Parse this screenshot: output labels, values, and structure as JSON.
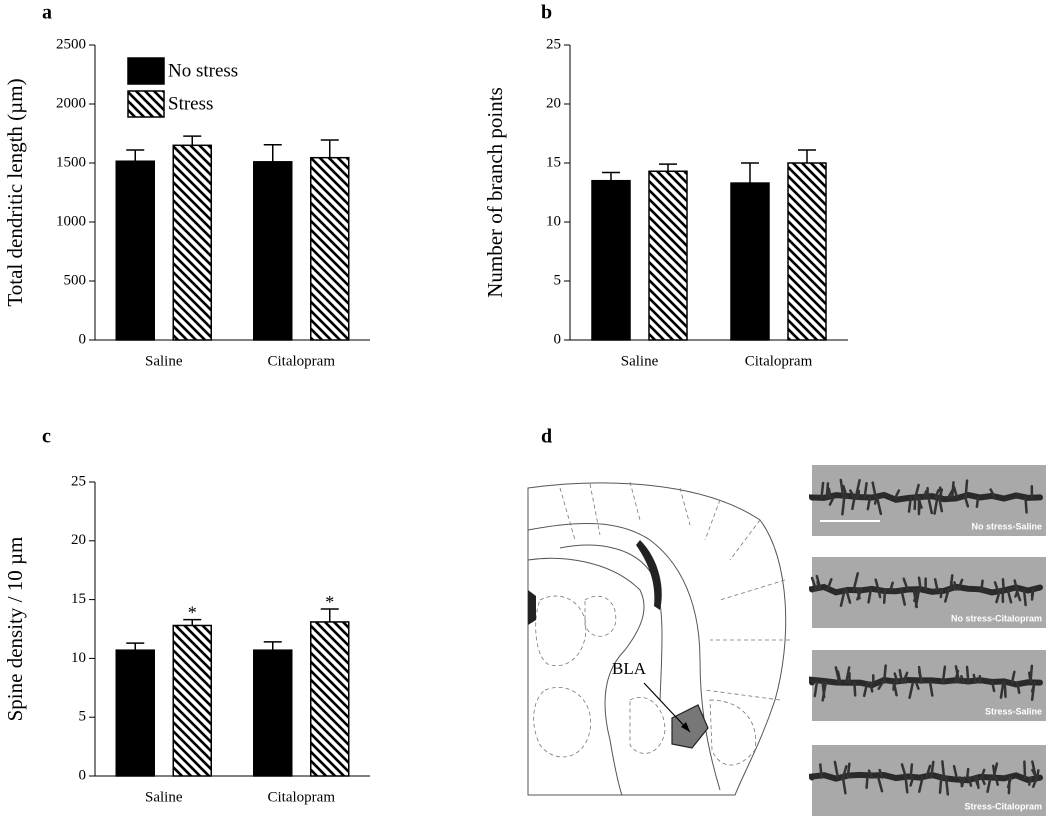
{
  "chart_data": [
    {
      "type": "bar",
      "panel": "a",
      "y_label": "Total dendritic length (µm)",
      "categories": [
        "Saline",
        "Citalopram"
      ],
      "ylim": [
        0,
        2500
      ],
      "yticks": [
        0,
        500,
        1000,
        1500,
        2000,
        2500
      ],
      "legend": "upper left",
      "series": [
        {
          "name": "No stress",
          "color": "#000000",
          "pattern": "solid",
          "values": [
            1515,
            1510
          ],
          "errors": [
            95,
            145
          ]
        },
        {
          "name": "Stress",
          "color": "#000000",
          "pattern": "hatch",
          "values": [
            1650,
            1545
          ],
          "errors": [
            78,
            150
          ]
        }
      ]
    },
    {
      "type": "bar",
      "panel": "b",
      "y_label": "Number of branch points",
      "categories": [
        "Saline",
        "Citalopram"
      ],
      "ylim": [
        0,
        25
      ],
      "yticks": [
        0,
        5,
        10,
        15,
        20,
        25
      ],
      "series": [
        {
          "color": "#000000",
          "pattern": "solid",
          "values": [
            13.5,
            13.3
          ],
          "errors": [
            0.7,
            1.7
          ]
        },
        {
          "color": "#000000",
          "pattern": "hatch",
          "values": [
            14.3,
            15.0
          ],
          "errors": [
            0.6,
            1.1
          ]
        }
      ]
    },
    {
      "type": "bar",
      "panel": "c",
      "y_label": "Spine density / 10 µm",
      "categories": [
        "Saline",
        "Citalopram"
      ],
      "ylim": [
        0,
        25
      ],
      "yticks": [
        0,
        5,
        10,
        15,
        20,
        25
      ],
      "series": [
        {
          "color": "#000000",
          "pattern": "solid",
          "values": [
            10.7,
            10.7
          ],
          "errors": [
            0.6,
            0.7
          ]
        },
        {
          "color": "#000000",
          "pattern": "hatch",
          "values": [
            12.8,
            13.1
          ],
          "errors": [
            0.5,
            1.1
          ],
          "significance": [
            "*",
            "*"
          ]
        }
      ]
    }
  ],
  "panel_d": {
    "label": "d",
    "region": "BLA",
    "images": [
      "No stress-Saline",
      "No stress-Citalopram",
      "Stress-Saline",
      "Stress-Citalopram"
    ]
  }
}
